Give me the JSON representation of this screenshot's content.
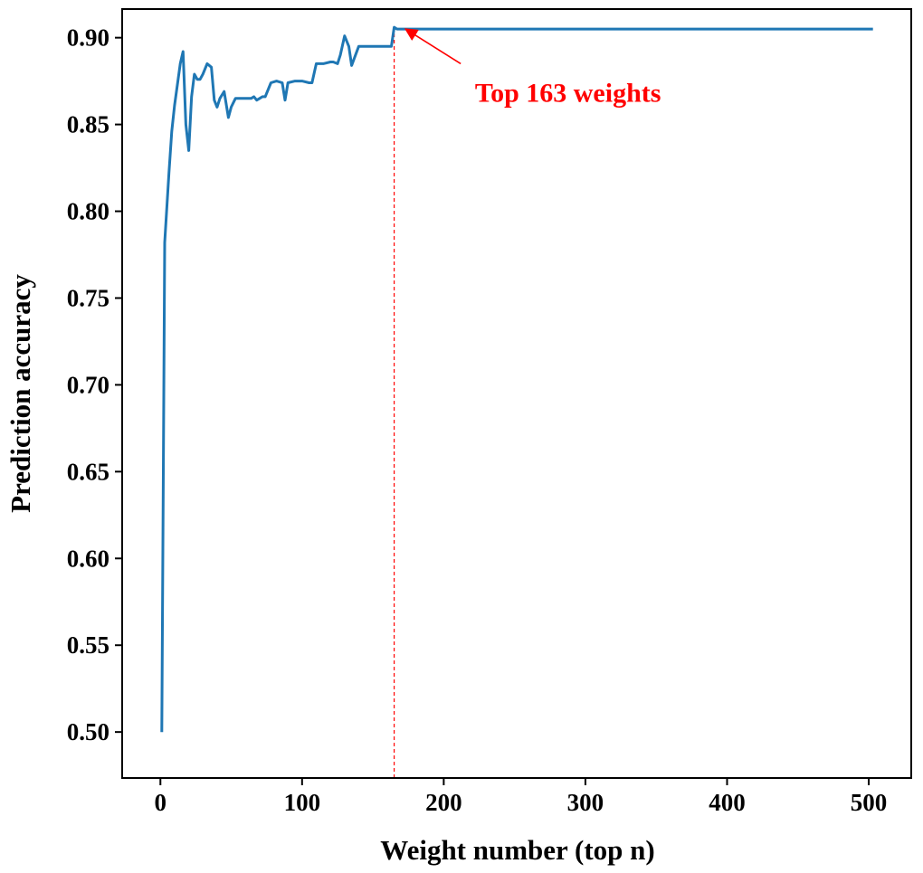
{
  "chart_data": {
    "type": "line",
    "title": "",
    "xlabel": "Weight number (top n)",
    "ylabel": "Prediction accuracy",
    "xlim": [
      -27,
      530
    ],
    "ylim": [
      0.4735,
      0.9165
    ],
    "xticks": [
      0,
      100,
      200,
      300,
      400,
      500
    ],
    "xtick_labels": [
      "0",
      "100",
      "200",
      "300",
      "400",
      "500"
    ],
    "yticks": [
      0.5,
      0.55,
      0.6,
      0.65,
      0.7,
      0.75,
      0.8,
      0.85,
      0.9
    ],
    "ytick_labels": [
      "0.50",
      "0.55",
      "0.60",
      "0.65",
      "0.70",
      "0.75",
      "0.80",
      "0.85",
      "0.90"
    ],
    "grid": false,
    "legend": "none",
    "series": [
      {
        "color": "#1f77b4",
        "x": [
          1,
          3,
          6,
          8,
          10,
          14,
          16,
          18,
          20,
          22,
          24,
          26,
          28,
          30,
          33,
          36,
          38,
          40,
          42,
          45,
          48,
          50,
          53,
          56,
          60,
          64,
          66,
          68,
          70,
          72,
          74,
          78,
          82,
          86,
          88,
          90,
          95,
          100,
          105,
          107,
          110,
          115,
          120,
          122,
          125,
          127,
          130,
          133,
          135,
          140,
          145,
          150,
          155,
          160,
          163,
          165,
          167,
          170,
          180,
          200,
          250,
          300,
          350,
          400,
          450,
          500,
          503
        ],
        "y": [
          0.5,
          0.782,
          0.822,
          0.846,
          0.861,
          0.885,
          0.892,
          0.85,
          0.835,
          0.866,
          0.879,
          0.876,
          0.876,
          0.879,
          0.885,
          0.883,
          0.864,
          0.86,
          0.865,
          0.869,
          0.854,
          0.86,
          0.865,
          0.865,
          0.865,
          0.865,
          0.866,
          0.864,
          0.865,
          0.866,
          0.866,
          0.874,
          0.875,
          0.874,
          0.864,
          0.874,
          0.875,
          0.875,
          0.874,
          0.874,
          0.885,
          0.885,
          0.886,
          0.886,
          0.885,
          0.89,
          0.901,
          0.895,
          0.884,
          0.895,
          0.895,
          0.895,
          0.895,
          0.895,
          0.895,
          0.906,
          0.905,
          0.905,
          0.905,
          0.905,
          0.905,
          0.905,
          0.905,
          0.905,
          0.905,
          0.905,
          0.905
        ]
      }
    ],
    "reference_line": {
      "x": 165,
      "color": "#ff0000",
      "style": "dashed"
    },
    "annotation": {
      "text": "Top 163 weights",
      "color": "#ff0000",
      "arrow_from": [
        212,
        0.885
      ],
      "arrow_to": [
        173,
        0.905
      ],
      "text_at": [
        222,
        0.863
      ]
    }
  }
}
